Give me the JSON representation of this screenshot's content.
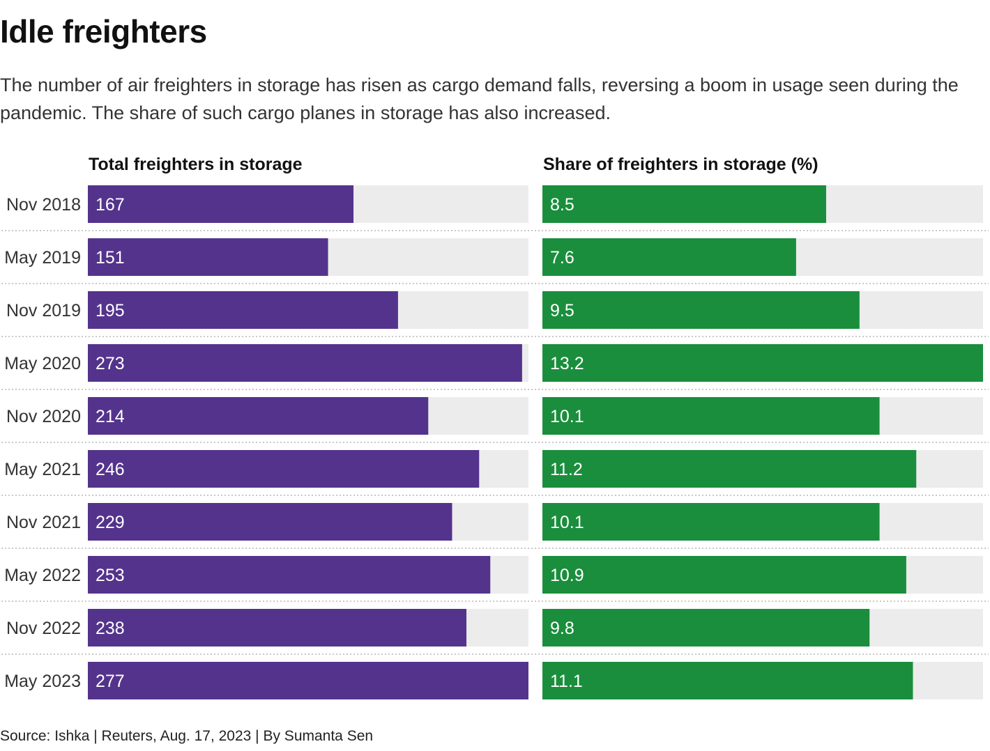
{
  "title": "Idle freighters",
  "subtitle": "The number of air freighters in storage has risen as cargo demand falls, reversing a boom in usage seen during the pandemic. The share of such cargo planes in storage has also increased.",
  "source": "Source: Ishka | Reuters, Aug. 17, 2023 | By Sumanta Sen",
  "chart_data": {
    "type": "bar",
    "orientation": "horizontal",
    "categories": [
      "Nov 2018",
      "May 2019",
      "Nov 2019",
      "May 2020",
      "Nov 2020",
      "May 2021",
      "Nov 2021",
      "May 2022",
      "Nov 2022",
      "May 2023"
    ],
    "panels": [
      {
        "title": "Total freighters in storage",
        "values": [
          167,
          151,
          195,
          273,
          214,
          246,
          229,
          253,
          238,
          277
        ],
        "xlim": [
          0,
          277
        ],
        "color": "#54338c"
      },
      {
        "title": "Share of freighters in storage (%)",
        "values": [
          8.5,
          7.6,
          9.5,
          13.2,
          10.1,
          11.2,
          10.1,
          10.9,
          9.8,
          11.1
        ],
        "xlim": [
          0,
          13.2
        ],
        "color": "#1a8e3c"
      }
    ],
    "track_color": "#ececec",
    "grid": false,
    "legend": "none"
  }
}
